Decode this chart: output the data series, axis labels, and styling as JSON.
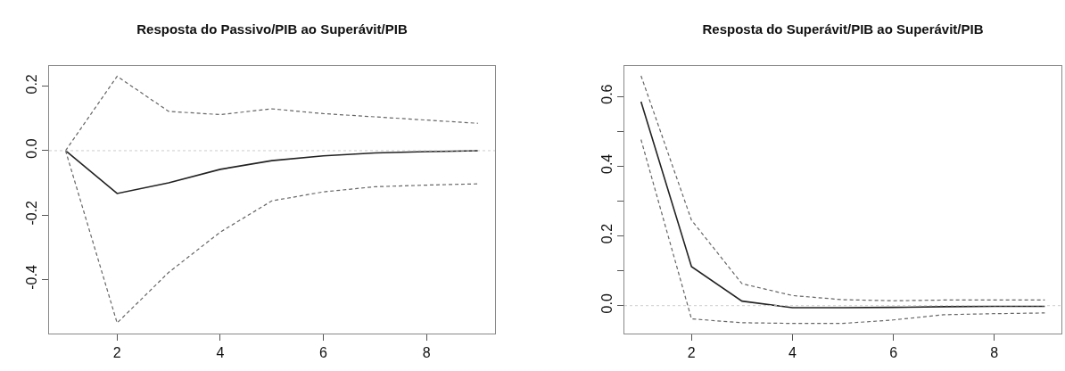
{
  "chart_data": [
    {
      "type": "line",
      "title": "Resposta do Passivo/PIB ao Superávit/PIB",
      "x": [
        1,
        2,
        3,
        4,
        5,
        6,
        7,
        8,
        9
      ],
      "xlim": [
        0.68,
        9.33
      ],
      "xticks": [
        2,
        4,
        6,
        8
      ],
      "ylim": [
        -0.568,
        0.263
      ],
      "yticks": [
        -0.4,
        -0.2,
        {
          "value": 0,
          "label": "0.0"
        },
        0.2
      ],
      "grid": false,
      "marker": "none",
      "series": [
        {
          "color": "#222222",
          "line_style": "solid",
          "values": [
            0,
            -0.133,
            -0.1,
            -0.058,
            -0.031,
            -0.016,
            -0.007,
            -0.003,
            0
          ]
        },
        {
          "color": "#666666",
          "line_style": "dashed",
          "values": [
            0,
            0.231,
            0.122,
            0.112,
            0.13,
            0.115,
            0.105,
            0.095,
            0.085
          ]
        },
        {
          "color": "#666666",
          "line_style": "dashed",
          "values": [
            0,
            -0.535,
            -0.378,
            -0.253,
            -0.156,
            -0.128,
            -0.112,
            -0.107,
            -0.103
          ]
        }
      ],
      "ref_lines": [
        {
          "axis": "y",
          "value": 0,
          "color": "#cccccc",
          "line_style": "dotted"
        }
      ]
    },
    {
      "type": "line",
      "title": "Resposta do Superávit/PIB ao Superávit/PIB",
      "x": [
        1,
        2,
        3,
        4,
        5,
        6,
        7,
        8,
        9
      ],
      "xlim": [
        0.67,
        9.33
      ],
      "xticks": [
        2,
        4,
        6,
        8
      ],
      "ylim": [
        -0.08,
        0.687
      ],
      "yticks": [
        {
          "value": 0,
          "label": "0.0"
        },
        {
          "value": 0.1,
          "label": null
        },
        0.2,
        {
          "value": 0.3,
          "label": null
        },
        0.4,
        {
          "value": 0.5,
          "label": null
        },
        0.6
      ],
      "grid": false,
      "marker": "none",
      "series": [
        {
          "color": "#222222",
          "line_style": "solid",
          "values": [
            0.585,
            0.112,
            0.013,
            -0.006,
            -0.006,
            -0.005,
            -0.003,
            -0.002,
            -0.002
          ]
        },
        {
          "color": "#666666",
          "line_style": "dashed",
          "values": [
            0.659,
            0.245,
            0.063,
            0.029,
            0.017,
            0.014,
            0.016,
            0.016,
            0.016
          ]
        },
        {
          "color": "#666666",
          "line_style": "dashed",
          "values": [
            0.476,
            -0.038,
            -0.049,
            -0.051,
            -0.051,
            -0.041,
            -0.026,
            -0.023,
            -0.021
          ]
        }
      ],
      "ref_lines": [
        {
          "axis": "y",
          "value": 0,
          "color": "#cccccc",
          "line_style": "dotted"
        }
      ]
    }
  ]
}
